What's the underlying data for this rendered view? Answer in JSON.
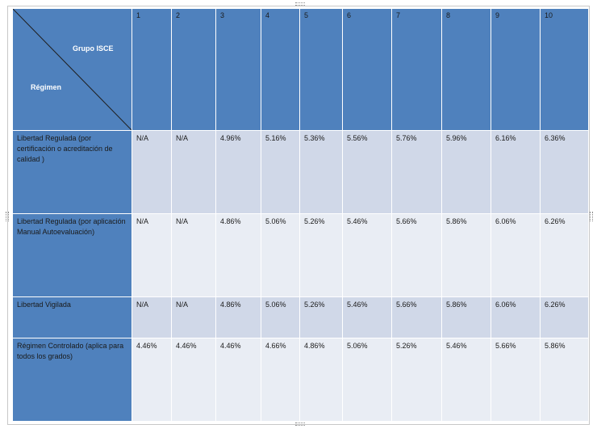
{
  "table": {
    "corner": {
      "column_label": "Grupo ISCE",
      "row_label": "Régimen"
    },
    "columns": [
      "1",
      "2",
      "3",
      "4",
      "5",
      "6",
      "7",
      "8",
      "9",
      "10"
    ],
    "rows": [
      {
        "label": "Libertad Regulada (por certificación o acreditación de calidad )",
        "values": [
          "N/A",
          "N/A",
          "4.96%",
          "5.16%",
          "5.36%",
          "5.56%",
          "5.76%",
          "5.96%",
          "6.16%",
          "6.36%"
        ]
      },
      {
        "label": "Libertad Regulada (por aplicación Manual Autoevaluación)",
        "values": [
          "N/A",
          "N/A",
          "4.86%",
          "5.06%",
          "5.26%",
          "5.46%",
          "5.66%",
          "5.86%",
          "6.06%",
          "6.26%"
        ]
      },
      {
        "label": "Libertad Vigilada",
        "values": [
          "N/A",
          "N/A",
          "4.86%",
          "5.06%",
          "5.26%",
          "5.46%",
          "5.66%",
          "5.86%",
          "6.06%",
          "6.26%"
        ]
      },
      {
        "label": "Régimen Controlado (aplica para todos los grados)",
        "values": [
          "4.46%",
          "4.46%",
          "4.46%",
          "4.66%",
          "4.86%",
          "5.06%",
          "5.26%",
          "5.46%",
          "5.66%",
          "5.86%"
        ]
      }
    ]
  },
  "colors": {
    "header_blue": "#4f81bd",
    "band_dark": "#d0d8e8",
    "band_light": "#e9edf4"
  }
}
